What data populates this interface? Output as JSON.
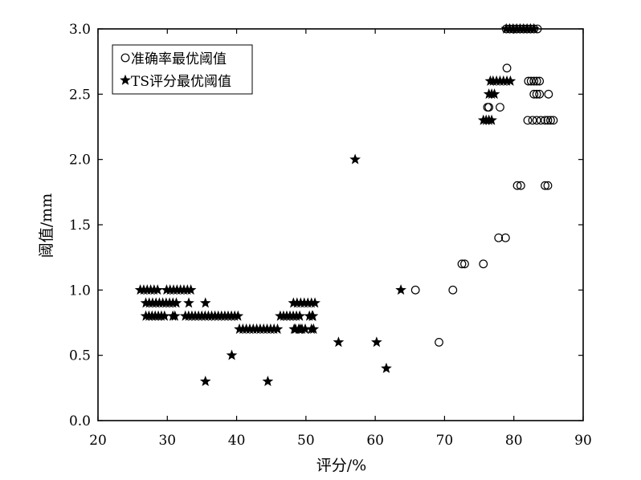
{
  "chart_data": {
    "type": "scatter",
    "title": "",
    "xlabel": "评分/%",
    "ylabel": "阈值/mm",
    "xlim": [
      20,
      90
    ],
    "ylim": [
      0.0,
      3.0
    ],
    "xticks": [
      "20",
      "30",
      "40",
      "50",
      "60",
      "70",
      "80",
      "90"
    ],
    "yticks": [
      "0.0",
      "0.5",
      "1.0",
      "1.5",
      "2.0",
      "2.5",
      "3.0"
    ],
    "grid": false,
    "legend_position": "top-left",
    "series": [
      {
        "name": "准确率最优阈值",
        "marker": "circle-open",
        "points": [
          [
            65.8,
            1.0
          ],
          [
            69.2,
            0.6
          ],
          [
            71.2,
            1.0
          ],
          [
            72.5,
            1.2
          ],
          [
            72.9,
            1.2
          ],
          [
            75.6,
            1.2
          ],
          [
            77.8,
            1.4
          ],
          [
            78.8,
            1.4
          ],
          [
            80.5,
            1.8
          ],
          [
            81.0,
            1.8
          ],
          [
            84.5,
            1.8
          ],
          [
            84.9,
            1.8
          ],
          [
            82.0,
            2.3
          ],
          [
            82.7,
            2.3
          ],
          [
            83.3,
            2.3
          ],
          [
            83.9,
            2.3
          ],
          [
            84.5,
            2.3
          ],
          [
            84.9,
            2.3
          ],
          [
            85.3,
            2.3
          ],
          [
            85.7,
            2.3
          ],
          [
            82.9,
            2.5
          ],
          [
            83.3,
            2.5
          ],
          [
            83.7,
            2.5
          ],
          [
            85.0,
            2.5
          ],
          [
            82.1,
            2.6
          ],
          [
            82.5,
            2.6
          ],
          [
            82.9,
            2.6
          ],
          [
            83.3,
            2.6
          ],
          [
            83.7,
            2.6
          ],
          [
            76.2,
            2.4
          ],
          [
            76.4,
            2.4
          ],
          [
            78.0,
            2.4
          ],
          [
            79.0,
            2.7
          ],
          [
            78.9,
            3.0
          ],
          [
            79.4,
            3.0
          ],
          [
            79.9,
            3.0
          ],
          [
            80.4,
            3.0
          ],
          [
            80.9,
            3.0
          ],
          [
            81.4,
            3.0
          ],
          [
            81.9,
            3.0
          ],
          [
            82.4,
            3.0
          ],
          [
            82.9,
            3.0
          ],
          [
            83.4,
            3.0
          ]
        ]
      },
      {
        "name": "TS评分最优阈值",
        "marker": "star-filled",
        "points": [
          [
            35.5,
            0.3
          ],
          [
            44.5,
            0.3
          ],
          [
            39.3,
            0.5
          ],
          [
            54.7,
            0.6
          ],
          [
            60.2,
            0.6
          ],
          [
            61.6,
            0.4
          ],
          [
            57.1,
            2.0
          ],
          [
            63.7,
            1.0
          ],
          [
            33.1,
            0.9
          ],
          [
            35.5,
            0.9
          ],
          [
            48.3,
            0.7
          ],
          [
            49.2,
            0.7
          ],
          [
            50.8,
            0.7
          ],
          [
            51.1,
            0.7
          ],
          [
            51.3,
            0.9
          ],
          [
            51.0,
            0.8
          ],
          [
            75.6,
            2.3
          ],
          [
            76.0,
            2.3
          ],
          [
            76.4,
            2.3
          ],
          [
            76.8,
            2.3
          ],
          [
            76.4,
            2.5
          ],
          [
            76.8,
            2.5
          ],
          [
            77.2,
            2.5
          ],
          [
            76.6,
            2.6
          ],
          [
            77.0,
            2.6
          ],
          [
            77.5,
            2.6
          ],
          [
            78.0,
            2.6
          ],
          [
            78.5,
            2.6
          ],
          [
            79.0,
            2.6
          ],
          [
            79.5,
            2.6
          ]
        ],
        "runs": [
          {
            "y": 1.0,
            "x_start": 26.1,
            "x_end": 28.6
          },
          {
            "y": 1.0,
            "x_start": 29.9,
            "x_end": 33.4
          },
          {
            "y": 0.9,
            "x_start": 26.9,
            "x_end": 31.3
          },
          {
            "y": 0.8,
            "x_start": 26.9,
            "x_end": 29.6
          },
          {
            "y": 0.8,
            "x_start": 30.8,
            "x_end": 31.1
          },
          {
            "y": 0.8,
            "x_start": 32.6,
            "x_end": 40.2
          },
          {
            "y": 0.7,
            "x_start": 40.4,
            "x_end": 45.9
          },
          {
            "y": 0.7,
            "x_start": 48.5,
            "x_end": 49.9
          },
          {
            "y": 0.8,
            "x_start": 46.3,
            "x_end": 49.1
          },
          {
            "y": 0.9,
            "x_start": 48.2,
            "x_end": 50.8
          },
          {
            "y": 0.8,
            "x_start": 50.5,
            "x_end": 50.9
          },
          {
            "y": 3.0,
            "x_start": 78.9,
            "x_end": 82.9
          }
        ]
      }
    ]
  }
}
